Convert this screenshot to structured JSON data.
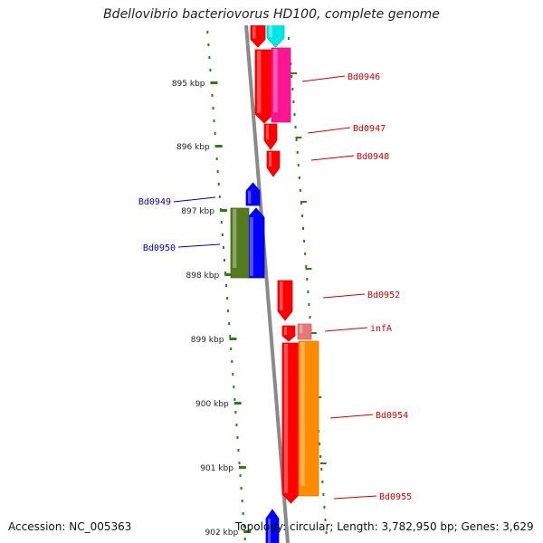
{
  "title": "Bdellovibrio bacteriovorus HD100, complete genome",
  "footer": {
    "accession": "Accession: NC_005363",
    "topology": "Topology: circular; Length: 3,782,950 bp; Genes: 3,629"
  },
  "colors": {
    "backbone": "#8a8a8a",
    "tick": "#2e7d1a",
    "label_red": "#cc0000",
    "label_blue": "#0000cc"
  },
  "scale": {
    "ticks": [
      {
        "label": "895 kbp"
      },
      {
        "label": "896 kbp"
      },
      {
        "label": "897 kbp"
      },
      {
        "label": "898 kbp"
      },
      {
        "label": "899 kbp"
      },
      {
        "label": "900 kbp"
      },
      {
        "label": "901 kbp"
      },
      {
        "label": "902 kbp"
      }
    ]
  },
  "genes": [
    {
      "name": "cyan-gene",
      "color": "#00e5e5",
      "strand": "+"
    },
    {
      "name": "Bd0946",
      "label": "Bd0946",
      "color": "#ff1493",
      "strand": "+"
    },
    {
      "name": "Bd0947",
      "label": "Bd0947",
      "color": "#ff0000",
      "strand": "+"
    },
    {
      "name": "Bd0948",
      "label": "Bd0948",
      "color": "#ff0000",
      "strand": "+"
    },
    {
      "name": "Bd0949",
      "label": "Bd0949",
      "color": "#0000ff",
      "strand": "-"
    },
    {
      "name": "Bd0950",
      "label": "Bd0950",
      "color": "#557a1e",
      "strand": "-"
    },
    {
      "name": "Bd0952",
      "label": "Bd0952",
      "color": "#ff0000",
      "strand": "+"
    },
    {
      "name": "infA",
      "label": "infA",
      "color": "#e87878",
      "strand": "+"
    },
    {
      "name": "Bd0954",
      "label": "Bd0954",
      "color": "#ff0000",
      "strand": "+"
    },
    {
      "name": "Bd0955",
      "label": "Bd0955",
      "color": "#ff8c00",
      "strand": "+"
    },
    {
      "name": "blue-gene-bottom",
      "color": "#0000ff",
      "strand": "-"
    }
  ]
}
